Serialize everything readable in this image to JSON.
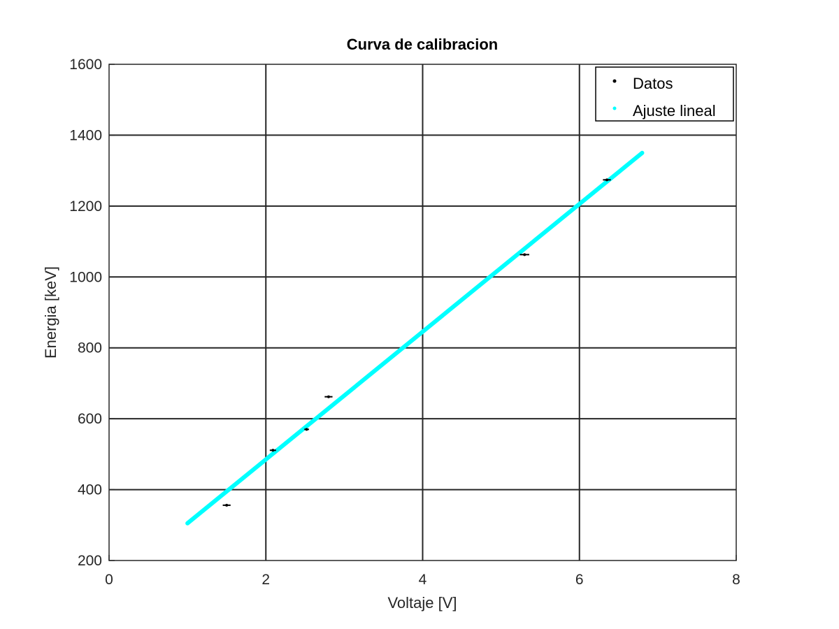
{
  "chart_data": {
    "type": "scatter",
    "title": "Curva de calibracion",
    "xlabel": "Voltaje [V]",
    "ylabel": "Energia [keV]",
    "xlim": [
      0,
      8
    ],
    "ylim": [
      200,
      1600
    ],
    "xticks": [
      0,
      2,
      4,
      6,
      8
    ],
    "yticks": [
      200,
      400,
      600,
      800,
      1000,
      1200,
      1400,
      1600
    ],
    "grid": true,
    "legend_position": "top-right",
    "series": [
      {
        "name": "Datos",
        "kind": "points-with-x-error",
        "color": "#000000",
        "points": [
          {
            "x": 1.5,
            "y": 356,
            "xerr": 0.05
          },
          {
            "x": 2.09,
            "y": 511,
            "xerr": 0.04
          },
          {
            "x": 2.52,
            "y": 570,
            "xerr": 0.03
          },
          {
            "x": 2.8,
            "y": 662,
            "xerr": 0.05
          },
          {
            "x": 5.3,
            "y": 1063,
            "xerr": 0.06
          },
          {
            "x": 6.35,
            "y": 1274,
            "xerr": 0.05
          }
        ]
      },
      {
        "name": "Ajuste lineal",
        "kind": "line",
        "color": "#00ffff",
        "x": [
          1.0,
          6.8
        ],
        "y": [
          305,
          1350
        ]
      }
    ]
  }
}
